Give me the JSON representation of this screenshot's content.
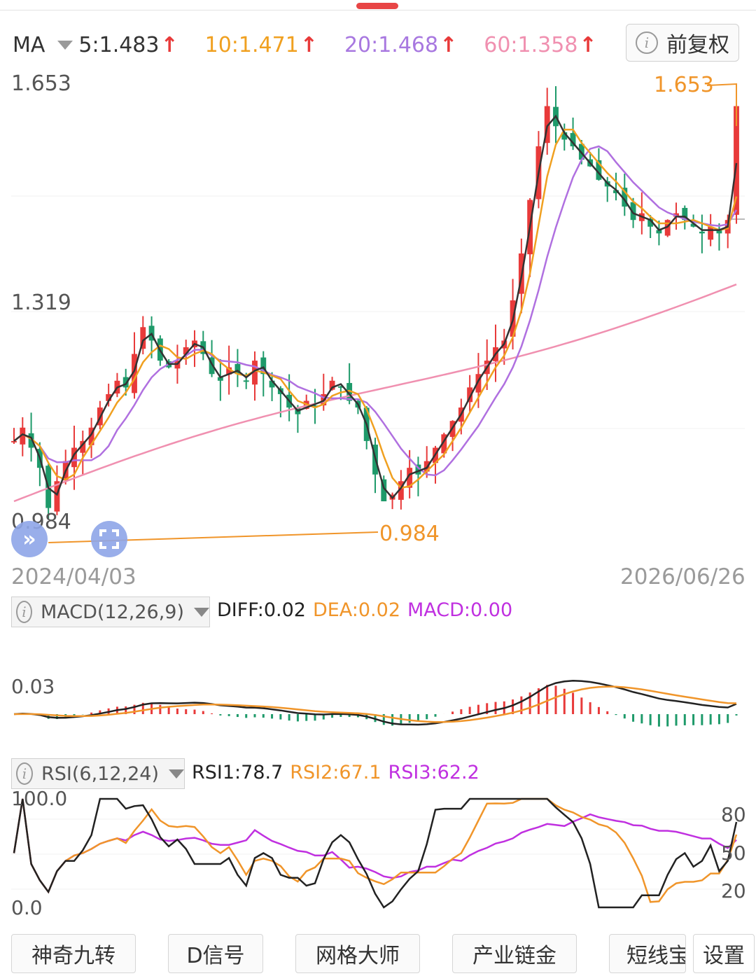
{
  "ma_header": {
    "label": "MA",
    "ma5": "5:1.483",
    "ma10": "10:1.471",
    "ma20": "20:1.468",
    "ma60": "60:1.358",
    "arrow": "↑"
  },
  "adjust_button": {
    "label": "前复权"
  },
  "price_axis": {
    "top": "1.653",
    "mid": "1.319",
    "bottom": "0.984"
  },
  "dates": {
    "start": "2024/04/03",
    "end": "2026/06/26"
  },
  "annotations": {
    "high": "1.653",
    "low": "0.984"
  },
  "macd": {
    "label": "MACD(12,26,9)",
    "diff": "DIFF:0.02",
    "dea": "DEA:0.02",
    "macd": "MACD:0.00",
    "axis_label": "0.03"
  },
  "rsi": {
    "label": "RSI(6,12,24)",
    "rsi1": "RSI1:78.7",
    "rsi2": "RSI2:67.1",
    "rsi3": "RSI3:62.2",
    "axis_top": "100.0",
    "axis_bottom": "0.0",
    "r80": "80",
    "r50": "50",
    "r20": "20"
  },
  "tabs": [
    "神奇九转",
    "D信号",
    "网格大师",
    "产业链金",
    "短线宝",
    "设置"
  ],
  "colors": {
    "up": "#e83a3a",
    "down": "#1e9a6a",
    "ma5": "#333333",
    "ma10": "#f0a020",
    "ma20": "#b070e0",
    "ma60": "#f090b0",
    "annotation": "#f0952a",
    "rsi3": "#c030e0"
  },
  "chart_data": [
    {
      "type": "candlestick",
      "title": "",
      "x_range": [
        "2024/04/03",
        "2026/06/26"
      ],
      "ylim": [
        0.984,
        1.653
      ],
      "series": [
        {
          "name": "MA5",
          "last": 1.483
        },
        {
          "name": "MA10",
          "last": 1.471
        },
        {
          "name": "MA20",
          "last": 1.468
        },
        {
          "name": "MA60",
          "last": 1.358
        }
      ],
      "period_high": 1.653,
      "period_low": 0.984,
      "close_path": [
        1.12,
        1.14,
        1.11,
        1.08,
        1.02,
        1.06,
        1.09,
        1.11,
        1.12,
        1.14,
        1.17,
        1.19,
        1.21,
        1.2,
        1.25,
        1.29,
        1.27,
        1.24,
        1.23,
        1.24,
        1.26,
        1.27,
        1.25,
        1.22,
        1.21,
        1.23,
        1.22,
        1.21,
        1.24,
        1.22,
        1.2,
        1.19,
        1.17,
        1.16,
        1.18,
        1.17,
        1.19,
        1.21,
        1.2,
        1.18,
        1.17,
        1.12,
        1.07,
        1.03,
        1.04,
        1.06,
        1.08,
        1.07,
        1.09,
        1.11,
        1.13,
        1.15,
        1.17,
        1.2,
        1.22,
        1.24,
        1.26,
        1.27,
        1.33,
        1.4,
        1.48,
        1.56,
        1.62,
        1.59,
        1.57,
        1.56,
        1.54,
        1.53,
        1.51,
        1.5,
        1.49,
        1.47,
        1.45,
        1.46,
        1.44,
        1.43,
        1.45,
        1.46,
        1.45,
        1.44,
        1.43,
        1.44,
        1.43,
        1.45,
        1.62
      ]
    },
    {
      "type": "line",
      "title": "MACD(12,26,9)",
      "series": [
        {
          "name": "DIFF",
          "last": 0.02
        },
        {
          "name": "DEA",
          "last": 0.02
        },
        {
          "name": "MACD",
          "last": 0.0
        }
      ],
      "y_label": "0.03"
    },
    {
      "type": "line",
      "title": "RSI(6,12,24)",
      "ylim": [
        0,
        100
      ],
      "series": [
        {
          "name": "RSI1",
          "last": 78.7
        },
        {
          "name": "RSI2",
          "last": 67.1
        },
        {
          "name": "RSI3",
          "last": 62.2
        }
      ]
    }
  ]
}
